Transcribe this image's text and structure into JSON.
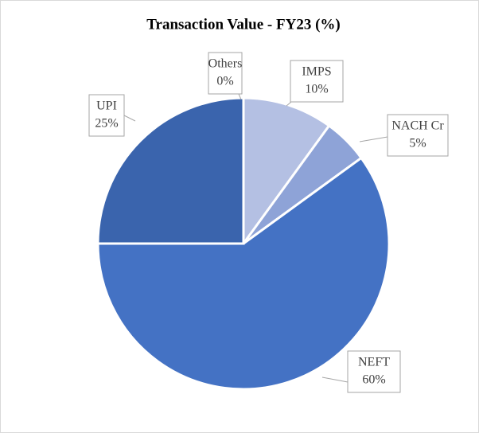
{
  "chart_data": {
    "type": "pie",
    "title": "Transaction Value - FY23 (%)",
    "categories": [
      "IMPS",
      "NACH Cr",
      "NEFT",
      "UPI",
      "Others"
    ],
    "values": [
      10,
      5,
      60,
      25,
      0
    ],
    "value_labels": [
      "10%",
      "5%",
      "60%",
      "25%",
      "0%"
    ],
    "colors": [
      "#b4c0e3",
      "#8ea3d7",
      "#4472c4",
      "#3a64ad",
      "#2f5597"
    ]
  }
}
